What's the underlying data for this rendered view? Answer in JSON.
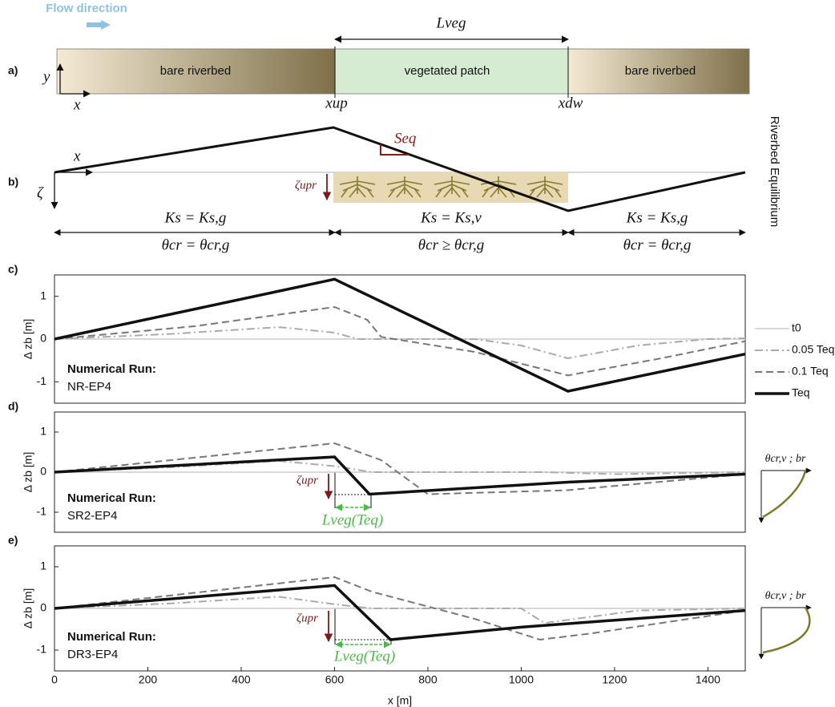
{
  "schematic": {
    "flow_label": "Flow direction",
    "panel_a": {
      "label": "a)",
      "length_label": "Lveg",
      "left_region": "bare riverbed",
      "middle_region": "vegetated patch",
      "right_region": "bare riverbed",
      "y_axis": "y",
      "x_axis": "x",
      "x_up": "xup",
      "x_dw": "xdw"
    },
    "panel_b": {
      "label": "b)",
      "x_axis": "x",
      "z_axis": "ζ",
      "slope_label": "Seq",
      "upr_label": "ζupr",
      "side_label": "Riverbed Equilibrium",
      "left_ks": "Ks = Ks,g",
      "left_theta": "θcr = θcr,g",
      "middle_ks": "Ks = Ks,v",
      "middle_theta": "θcr ≥ θcr,g",
      "right_ks": "Ks = Ks,g",
      "right_theta": "θcr = θcr,g"
    }
  },
  "chart_data": [
    {
      "type": "line",
      "panel_label": "c)",
      "run_label": "Numerical Run:",
      "run_name": "NR-EP4",
      "ylabel": "Δ zb [m]",
      "xlim": [
        0,
        1480
      ],
      "ylim": [
        -1.5,
        1.5
      ],
      "yticks": [
        -1,
        0,
        1
      ],
      "legend": "outside-right",
      "series": [
        {
          "name": "t0",
          "color": "#cccccc",
          "dash": "solid",
          "width": 1.5,
          "x": [
            0,
            1480
          ],
          "values": [
            0,
            0
          ]
        },
        {
          "name": "0.05 Teq",
          "color": "#aaaaaa",
          "dash": "dashdot",
          "width": 2,
          "x": [
            0,
            250,
            480,
            600,
            650,
            900,
            1000,
            1100,
            1250,
            1400,
            1480
          ],
          "values": [
            0,
            0.12,
            0.28,
            0.15,
            0,
            0,
            -0.15,
            -0.45,
            -0.15,
            0,
            0.02
          ]
        },
        {
          "name": "0.1 Teq",
          "color": "#777777",
          "dash": "dashed",
          "width": 2,
          "x": [
            0,
            300,
            600,
            670,
            700,
            900,
            1100,
            1300,
            1480
          ],
          "values": [
            0,
            0.3,
            0.75,
            0.45,
            0.05,
            -0.3,
            -0.85,
            -0.45,
            -0.05
          ]
        },
        {
          "name": "Teq",
          "color": "#111111",
          "dash": "solid",
          "width": 3.5,
          "x": [
            0,
            600,
            1100,
            1480
          ],
          "values": [
            0,
            1.4,
            -1.22,
            -0.35
          ]
        }
      ]
    },
    {
      "type": "line",
      "panel_label": "d)",
      "run_label": "Numerical Run:",
      "run_name": "SR2-EP4",
      "ylabel": "Δ zb [m]",
      "xlim": [
        0,
        1480
      ],
      "ylim": [
        -1.5,
        1.5
      ],
      "yticks": [
        -1,
        0,
        1
      ],
      "upr_label": "ζupr",
      "length_label": "Lveg(Teq)",
      "inset_label": "θcr,v ; br",
      "series": [
        {
          "color": "#cccccc",
          "dash": "solid",
          "width": 1.5,
          "x": [
            0,
            1480
          ],
          "values": [
            0,
            0
          ]
        },
        {
          "color": "#aaaaaa",
          "dash": "dashdot",
          "width": 2,
          "x": [
            0,
            250,
            480,
            600,
            680,
            1050,
            1200,
            1480
          ],
          "values": [
            0,
            0.12,
            0.28,
            0.15,
            0,
            0,
            -0.05,
            0
          ]
        },
        {
          "color": "#777777",
          "dash": "dashed",
          "width": 2,
          "x": [
            0,
            600,
            700,
            800,
            1100,
            1480
          ],
          "values": [
            0,
            0.72,
            0.3,
            -0.55,
            -0.45,
            -0.05
          ]
        },
        {
          "color": "#111111",
          "dash": "solid",
          "width": 3.5,
          "x": [
            0,
            600,
            675,
            1100,
            1480
          ],
          "values": [
            0,
            0.38,
            -0.55,
            -0.25,
            -0.05
          ]
        }
      ]
    },
    {
      "type": "line",
      "panel_label": "e)",
      "run_label": "Numerical Run:",
      "run_name": "DR3-EP4",
      "ylabel": "Δ zb [m]",
      "xlabel": "x [m]",
      "xlim": [
        0,
        1480
      ],
      "ylim": [
        -1.5,
        1.5
      ],
      "yticks": [
        -1,
        0,
        1
      ],
      "xticks": [
        0,
        200,
        400,
        600,
        800,
        1000,
        1200,
        1400
      ],
      "upr_label": "ζupr",
      "length_label": "Lveg(Teq)",
      "inset_label": "θcr,v ; br",
      "series": [
        {
          "color": "#cccccc",
          "dash": "solid",
          "width": 1.5,
          "x": [
            0,
            1480
          ],
          "values": [
            0,
            0
          ]
        },
        {
          "color": "#aaaaaa",
          "dash": "dashdot",
          "width": 2,
          "x": [
            0,
            250,
            480,
            600,
            680,
            1000,
            1050,
            1250,
            1480
          ],
          "values": [
            0,
            0.12,
            0.28,
            0.1,
            0,
            0,
            -0.35,
            -0.05,
            0
          ]
        },
        {
          "color": "#777777",
          "dash": "dashed",
          "width": 2,
          "x": [
            0,
            600,
            680,
            900,
            1040,
            1150,
            1480
          ],
          "values": [
            0,
            0.75,
            0.4,
            -0.25,
            -0.75,
            -0.6,
            -0.05
          ]
        },
        {
          "color": "#111111",
          "dash": "solid",
          "width": 3.5,
          "x": [
            0,
            600,
            720,
            1000,
            1480
          ],
          "values": [
            0,
            0.55,
            -0.75,
            -0.45,
            -0.05
          ]
        }
      ]
    }
  ]
}
